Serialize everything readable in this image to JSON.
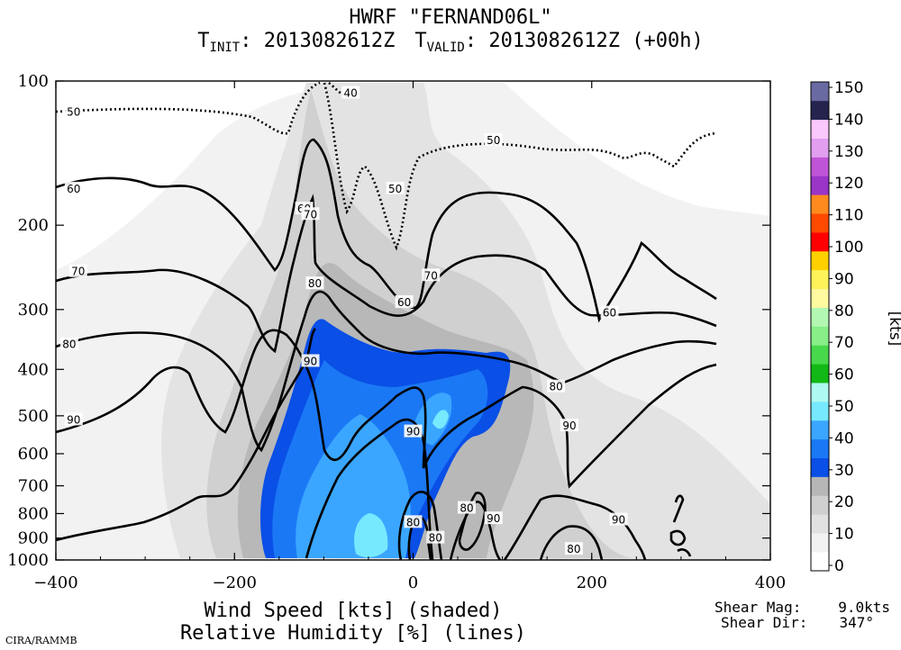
{
  "header": {
    "title": "HWRF \"FERNAND06L\"",
    "init_prefix": "T",
    "init_sub": "INIT",
    "init_value": ": 2013082612Z",
    "valid_prefix": "T",
    "valid_sub": "VALID",
    "valid_value": ": 2013082612Z (+00h)"
  },
  "footer": {
    "xlabel_line1": "Wind Speed [kts] (shaded)",
    "xlabel_line2": "Relative Humidity [%] (lines)",
    "shear_mag_label": "Shear Mag:",
    "shear_mag_value": "9.0kts",
    "shear_dir_label": "Shear Dir:",
    "shear_dir_value": "347°",
    "credit": "CIRA/RAMMB"
  },
  "chart_data": {
    "type": "contour",
    "x_range": [
      -400,
      400
    ],
    "x_ticks": [
      -400,
      -200,
      0,
      200,
      400
    ],
    "x_tick_labels": [
      "−400",
      "−200",
      "0",
      "200",
      "400"
    ],
    "y_scale": "log",
    "y_range": [
      1000,
      100
    ],
    "y_ticks": [
      100,
      200,
      300,
      400,
      500,
      600,
      700,
      800,
      900,
      1000
    ],
    "colorbar": {
      "unit_label": "[kts]",
      "levels": [
        0,
        10,
        20,
        30,
        40,
        50,
        60,
        70,
        80,
        90,
        100,
        110,
        120,
        130,
        140,
        150
      ],
      "colors": [
        "#ffffff",
        "#f2f2f2",
        "#e1e1e1",
        "#cfcfcf",
        "#b6b6b6",
        "#0a4fe6",
        "#1b78f5",
        "#3aa6ff",
        "#77e9ff",
        "#aef9f2",
        "#12b916",
        "#48d84c",
        "#88ee88",
        "#b2f8b2",
        "#fff9a0",
        "#fff35a",
        "#ffd000",
        "#ff0000",
        "#ff4a00",
        "#ff8a1e",
        "#9a35c8",
        "#bf55d6",
        "#e29ff0",
        "#fbc8fb",
        "#24244e",
        "#6a6aa2"
      ]
    },
    "rh_contour_labels": [
      {
        "label": "40",
        "x": -70,
        "y": 106
      },
      {
        "label": "50",
        "x": -380,
        "y": 116
      },
      {
        "label": "50",
        "x": 90,
        "y": 133
      },
      {
        "label": "50",
        "x": -20,
        "y": 168
      },
      {
        "label": "60",
        "x": -380,
        "y": 168
      },
      {
        "label": "60",
        "x": -122,
        "y": 185
      },
      {
        "label": "70",
        "x": -115,
        "y": 190
      },
      {
        "label": "60",
        "x": 220,
        "y": 305
      },
      {
        "label": "60",
        "x": -10,
        "y": 290
      },
      {
        "label": "70",
        "x": 20,
        "y": 255
      },
      {
        "label": "70",
        "x": -375,
        "y": 250
      },
      {
        "label": "80",
        "x": -110,
        "y": 265
      },
      {
        "label": "80",
        "x": -385,
        "y": 355
      },
      {
        "label": "90",
        "x": -115,
        "y": 385
      },
      {
        "label": "80",
        "x": 160,
        "y": 435
      },
      {
        "label": "90",
        "x": -380,
        "y": 510
      },
      {
        "label": "90",
        "x": 0,
        "y": 540
      },
      {
        "label": "90",
        "x": 175,
        "y": 525
      },
      {
        "label": "80",
        "x": 0,
        "y": 835
      },
      {
        "label": "80",
        "x": 60,
        "y": 780
      },
      {
        "label": "90",
        "x": 90,
        "y": 820
      },
      {
        "label": "90",
        "x": 230,
        "y": 825
      },
      {
        "label": "80",
        "x": 25,
        "y": 900
      },
      {
        "label": "80",
        "x": 180,
        "y": 950
      }
    ]
  }
}
